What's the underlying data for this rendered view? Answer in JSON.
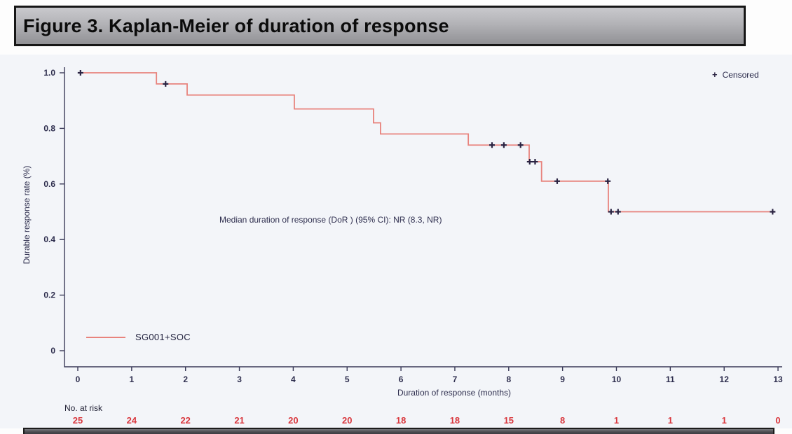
{
  "figure": {
    "title": "Figure 3. Kaplan-Meier of duration of response"
  },
  "chart_data": {
    "type": "line",
    "subtype": "kaplan-meier-step",
    "title": "Figure 3. Kaplan-Meier of duration of response",
    "xlabel": "Duration of response (months)",
    "ylabel": "Durable response rate (%)",
    "xlim": [
      0,
      13
    ],
    "ylim": [
      0,
      1.0
    ],
    "x_ticks": [
      0,
      1,
      2,
      3,
      4,
      5,
      6,
      7,
      8,
      9,
      10,
      11,
      12,
      13
    ],
    "y_ticks": [
      "1.0",
      "0.8",
      "0.6",
      "0.4",
      "0.2",
      "0"
    ],
    "y_tick_values": [
      1.0,
      0.8,
      0.6,
      0.4,
      0.2,
      0
    ],
    "grid": false,
    "legend": {
      "position": "top-right",
      "censored_marker": "+",
      "censored_label": "Censored"
    },
    "annotations": [
      "Median duration of response (DoR ) (95% CI): NR (8.3, NR)"
    ],
    "series": [
      {
        "name": "SG001+SOC",
        "color": "#e8837d",
        "steps": [
          [
            0,
            1.0
          ],
          [
            1.46,
            0.96
          ],
          [
            2.03,
            0.92
          ],
          [
            4.02,
            0.87
          ],
          [
            5.49,
            0.82
          ],
          [
            5.62,
            0.78
          ],
          [
            7.25,
            0.74
          ],
          [
            8.38,
            0.68
          ],
          [
            8.61,
            0.61
          ],
          [
            9.85,
            0.5
          ]
        ],
        "end_time": 12.9,
        "censored": [
          [
            0.05,
            1.0
          ],
          [
            1.63,
            0.96
          ],
          [
            7.69,
            0.74
          ],
          [
            7.91,
            0.74
          ],
          [
            8.22,
            0.74
          ],
          [
            8.39,
            0.68
          ],
          [
            8.49,
            0.68
          ],
          [
            8.9,
            0.61
          ],
          [
            9.84,
            0.61
          ],
          [
            9.9,
            0.5
          ],
          [
            10.03,
            0.5
          ],
          [
            12.9,
            0.5
          ]
        ]
      }
    ],
    "no_at_risk": {
      "label": "No. at risk",
      "times": [
        0,
        1,
        2,
        3,
        4,
        5,
        6,
        7,
        8,
        9,
        10,
        11,
        12,
        13
      ],
      "values": [
        25,
        24,
        22,
        21,
        20,
        20,
        18,
        18,
        15,
        8,
        1,
        1,
        1,
        0
      ]
    }
  }
}
